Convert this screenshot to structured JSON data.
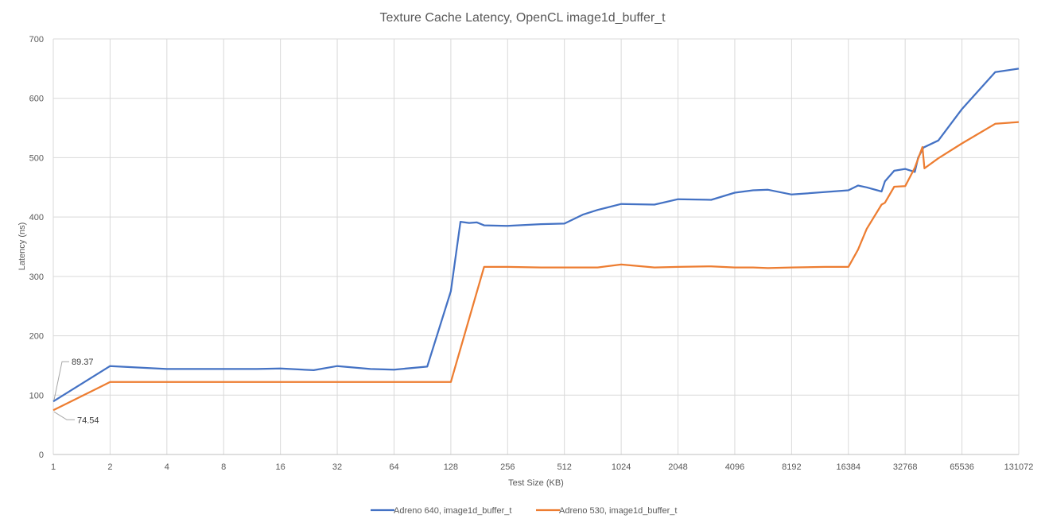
{
  "chart_data": {
    "type": "line",
    "title": "Texture Cache Latency, OpenCL image1d_buffer_t",
    "xlabel": "Test Size (KB)",
    "ylabel": "Latency (ns)",
    "x_scale": "log2",
    "xlim": [
      1,
      131072
    ],
    "ylim": [
      0,
      700
    ],
    "y_ticks": [
      0,
      100,
      200,
      300,
      400,
      500,
      600,
      700
    ],
    "x_ticks": [
      1,
      2,
      4,
      8,
      16,
      32,
      64,
      128,
      256,
      512,
      1024,
      2048,
      4096,
      8192,
      16384,
      32768,
      65536,
      131072
    ],
    "grid": true,
    "legend_position": "bottom",
    "series": [
      {
        "name": "Adreno 640, image1d_buffer_t",
        "color": "#4472C4",
        "x": [
          1,
          2,
          4,
          8,
          12,
          16,
          24,
          32,
          48,
          64,
          96,
          128,
          144,
          160,
          176,
          192,
          256,
          384,
          512,
          640,
          768,
          1024,
          1536,
          2048,
          3072,
          4096,
          5120,
          6144,
          8192,
          16384,
          18432,
          20480,
          24576,
          25600,
          28672,
          32768,
          36864,
          38400,
          40960,
          49152,
          65536,
          98304,
          131072
        ],
        "values": [
          89.37,
          149,
          144,
          144,
          144,
          145,
          142,
          149,
          144,
          143,
          148,
          275,
          392,
          390,
          391,
          386,
          385,
          388,
          389,
          404,
          412,
          422,
          421,
          430,
          429,
          441,
          445,
          446,
          438,
          445,
          453,
          450,
          443,
          460,
          478,
          481,
          476,
          500,
          517,
          529,
          582,
          644,
          650
        ]
      },
      {
        "name": "Adreno 530, image1d_buffer_t",
        "color": "#ED7D31",
        "x": [
          1,
          2,
          4,
          8,
          16,
          32,
          64,
          128,
          192,
          256,
          384,
          512,
          768,
          1024,
          1536,
          2048,
          3072,
          4096,
          5120,
          6144,
          8192,
          12288,
          16384,
          18432,
          20480,
          24576,
          25600,
          28672,
          32768,
          36864,
          40448,
          41472,
          49152,
          65536,
          98304,
          131072
        ],
        "values": [
          74.54,
          122,
          122,
          122,
          122,
          122,
          122,
          122,
          316,
          316,
          315,
          315,
          315,
          320,
          315,
          316,
          317,
          315,
          315,
          314,
          315,
          316,
          316,
          345,
          380,
          421,
          424,
          451,
          452,
          483,
          518,
          482,
          499,
          524,
          557,
          560
        ]
      }
    ],
    "annotations": [
      {
        "series": 0,
        "x": 1,
        "label": "89.37"
      },
      {
        "series": 1,
        "x": 1,
        "label": "74.54"
      }
    ]
  }
}
